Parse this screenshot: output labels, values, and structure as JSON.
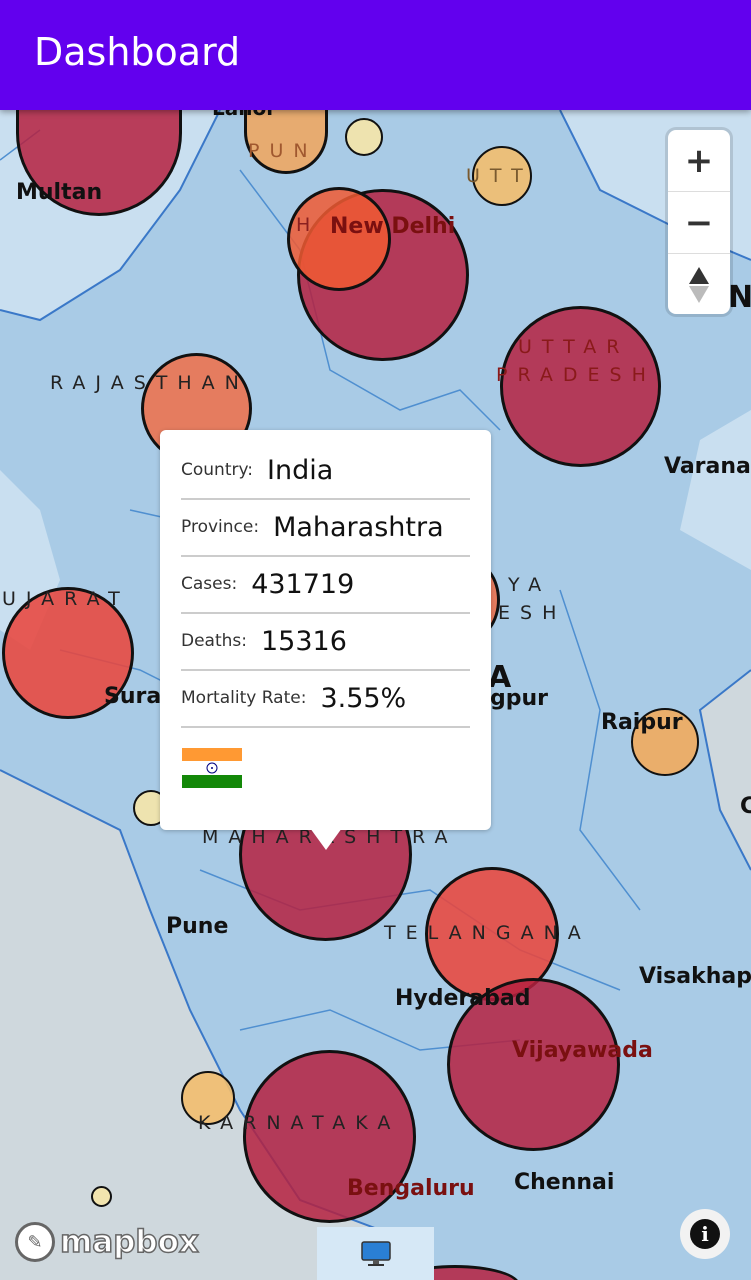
{
  "app": {
    "title": "Dashboard"
  },
  "map_labels": {
    "multan": "Multan",
    "new_delhi": "New Delhi",
    "rajasthan": "RAJASTHAN",
    "uttar": "UTTAR",
    "pradesh": "PRADESH",
    "varanasi": "Varana",
    "gujarat": "UJARAT",
    "surat": "Sura",
    "nagpur": "gpur",
    "india": "A",
    "madhya_1": "YA",
    "madhya_2": "ESH",
    "raipur": "Raipur",
    "pune": "Pune",
    "maharashtra": "MAHARASHTRA",
    "telangana": "TELANGANA",
    "hyderabad": "Hyderabad",
    "visakhapatnam": "Visakhap",
    "vijayawada": "Vijayawada",
    "karnataka": "KARNATAKA",
    "chennai": "Chennai",
    "bengaluru": "Bengaluru",
    "punjab": "PUN",
    "uttarakhand": "UTT",
    "haryana": "H",
    "lahore": "Lahor",
    "nepal": "N",
    "c": "C"
  },
  "popup": {
    "country_label": "Country:",
    "country": "India",
    "province_label": "Province:",
    "province": "Maharashtra",
    "cases_label": "Cases:",
    "cases": "431719",
    "deaths_label": "Deaths:",
    "deaths": "15316",
    "mortality_label": "Mortality Rate:",
    "mortality": "3.55%",
    "flag_colors": [
      "#ff9933",
      "#ffffff",
      "#138808"
    ]
  },
  "controls": {
    "zoom_in": "+",
    "zoom_out": "−",
    "compass": "▲"
  },
  "branding": {
    "mapbox": "mapbox",
    "info": "i"
  },
  "colors": {
    "appbar": "#6200ee",
    "bubble_high": "#b5213f",
    "bubble_mid": "#e8473e",
    "bubble_low": "#f2a65a",
    "bubble_min": "#f5e6a8"
  }
}
